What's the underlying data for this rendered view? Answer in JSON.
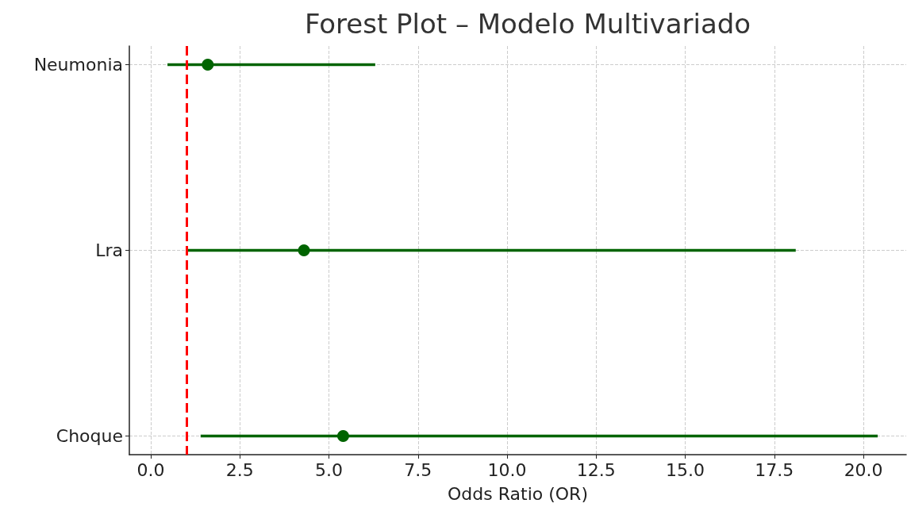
{
  "chart_data": {
    "type": "scatter",
    "orientation": "horizontal",
    "title": "Forest Plot – Modelo Multivariado",
    "xlabel": "Odds Ratio (OR)",
    "categories": [
      "Neumonia",
      "Lra",
      "Choque"
    ],
    "values": [
      1.6,
      4.3,
      5.4
    ],
    "errors": [
      [
        0.47,
        6.3
      ],
      [
        1.0,
        18.1
      ],
      [
        1.4,
        20.4
      ]
    ],
    "color": "#006400",
    "marker": "circle",
    "xlim": [
      -0.6,
      21.2
    ],
    "xticks": [
      {
        "value": 0,
        "label": "0.0"
      },
      2.5,
      {
        "value": 5,
        "label": "5.0"
      },
      7.5,
      {
        "value": 10,
        "label": "10.0"
      },
      12.5,
      {
        "value": 15,
        "label": "15.0"
      },
      17.5,
      {
        "value": 20,
        "label": "20.0"
      }
    ],
    "ref_lines": [
      {
        "axis": "x",
        "value": 1,
        "color": "#ff0000",
        "line_style": "dashed"
      }
    ],
    "grid": true
  }
}
